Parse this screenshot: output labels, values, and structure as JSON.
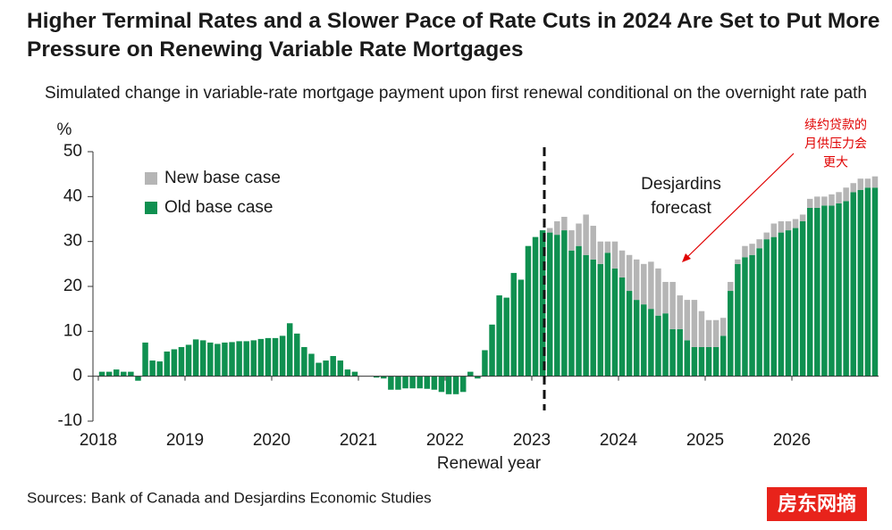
{
  "chart_data": {
    "type": "stacked_bar",
    "title": "Higher Terminal Rates and a Slower Pace of Rate Cuts in 2024 Are Set to Put More Pressure on Renewing Variable Rate Mortgages",
    "subtitle": "Simulated change in variable-rate mortgage payment upon first renewal conditional on the overnight rate path",
    "y_unit": "%",
    "x_label": "Renewal year",
    "forecast_label": [
      "Desjardins",
      "forecast"
    ],
    "note": [
      "续约贷款的",
      "月供压力会",
      "更大"
    ],
    "source": "Sources: Bank of Canada and Desjardins Economic Studies",
    "watermark": "房东网摘",
    "categories": [
      "2018",
      null,
      null,
      null,
      null,
      null,
      null,
      null,
      null,
      null,
      null,
      null,
      "2019",
      null,
      null,
      null,
      null,
      null,
      null,
      null,
      null,
      null,
      null,
      null,
      "2020",
      null,
      null,
      null,
      null,
      null,
      null,
      null,
      null,
      null,
      null,
      null,
      "2021",
      null,
      null,
      null,
      null,
      null,
      null,
      null,
      null,
      null,
      null,
      null,
      "2022",
      null,
      null,
      null,
      null,
      null,
      null,
      null,
      null,
      null,
      null,
      null,
      "2023",
      null,
      null,
      null,
      null,
      null,
      null,
      null,
      null,
      null,
      null,
      null,
      "2024",
      null,
      null,
      null,
      null,
      null,
      null,
      null,
      null,
      null,
      null,
      null,
      "2025",
      null,
      null,
      null,
      null,
      null,
      null,
      null,
      null,
      null,
      null,
      null,
      "2026",
      null,
      null,
      null,
      null,
      null,
      null,
      null,
      null,
      null,
      null,
      null
    ],
    "series": [
      {
        "name": "Old base case",
        "color": "#0f9050",
        "values": [
          1,
          1,
          1.5,
          1,
          1,
          -1,
          7.5,
          3.5,
          3.3,
          5.5,
          6,
          6.5,
          7,
          8.2,
          8,
          7.5,
          7.2,
          7.5,
          7.6,
          7.8,
          7.8,
          8,
          8.3,
          8.5,
          8.5,
          9,
          11.8,
          9.5,
          6.5,
          5,
          3,
          3.5,
          4.5,
          3.5,
          1.5,
          1,
          0,
          0,
          -0.3,
          -0.5,
          -3,
          -3,
          -2.7,
          -2.7,
          -2.7,
          -2.8,
          -3,
          -3.5,
          -4,
          -4,
          -3.5,
          1,
          -0.5,
          5.8,
          11.5,
          18,
          17.5,
          23,
          21.5,
          29,
          31,
          32.5,
          32,
          31.5,
          32.5,
          28,
          29,
          27,
          26,
          25,
          27.5,
          24,
          22,
          19,
          17,
          16,
          15,
          13.5,
          14,
          10.5,
          10.5,
          8,
          6.5,
          6.5,
          6.5,
          6.5,
          9,
          19,
          25,
          26.5,
          27,
          28.5,
          30.5,
          31,
          32,
          32.5,
          33,
          34.5,
          37.5,
          37.5,
          38,
          38,
          38.5,
          39,
          41,
          41.5,
          42,
          42
        ]
      },
      {
        "name": "New base case",
        "color": "#b5b5b5",
        "values": [
          null,
          null,
          null,
          null,
          null,
          null,
          null,
          null,
          null,
          null,
          null,
          null,
          null,
          null,
          null,
          null,
          null,
          null,
          null,
          null,
          null,
          null,
          null,
          null,
          null,
          null,
          null,
          null,
          null,
          null,
          null,
          null,
          null,
          null,
          null,
          null,
          null,
          null,
          null,
          null,
          null,
          null,
          null,
          null,
          null,
          null,
          null,
          null,
          null,
          null,
          null,
          null,
          null,
          null,
          null,
          null,
          null,
          null,
          null,
          null,
          0,
          0,
          1,
          3,
          3,
          4.5,
          5,
          9,
          7.5,
          5,
          2.5,
          6,
          6,
          8,
          9,
          9,
          10.5,
          10.5,
          7,
          10.5,
          7.5,
          9,
          10.5,
          8,
          6,
          6,
          4,
          2,
          1,
          2.5,
          2.5,
          2,
          1.5,
          3,
          2.5,
          2,
          2,
          1.5,
          2,
          2.5,
          2,
          2.5,
          2.5,
          3,
          2,
          2.5,
          2,
          2.5
        ]
      }
    ],
    "legend_order": [
      1,
      0
    ],
    "ylim": [
      -10,
      50
    ],
    "yticks": [
      -10,
      0,
      10,
      20,
      30,
      40,
      50
    ]
  }
}
